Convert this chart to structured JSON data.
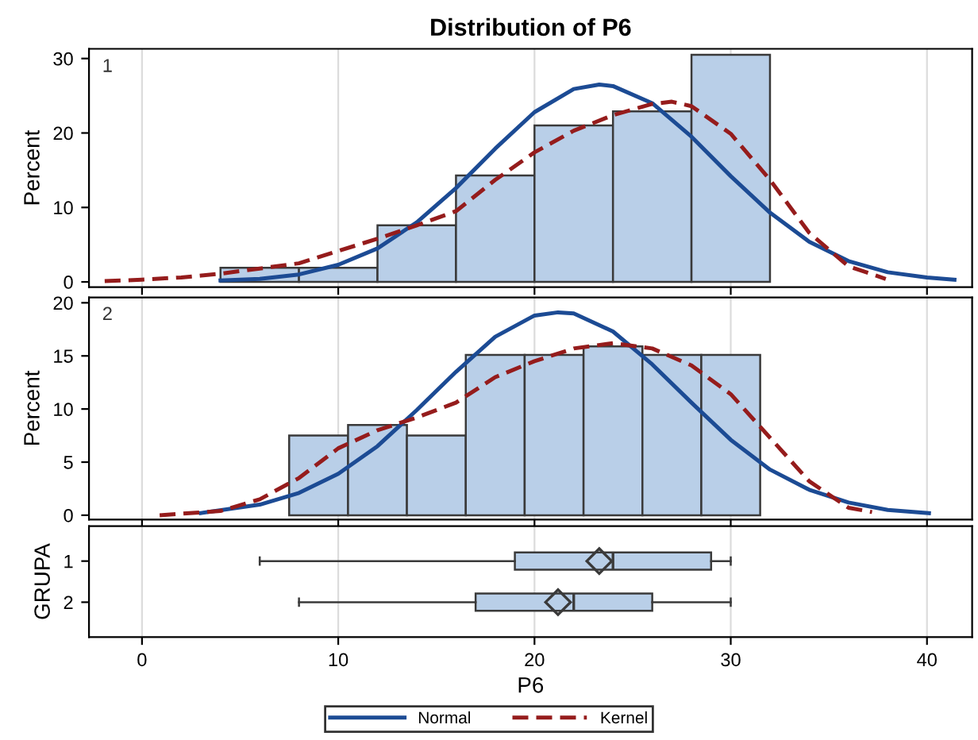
{
  "chart_data": [
    {
      "type": "histogram",
      "title": "Distribution of P6",
      "ylabel": "Percent",
      "annotations": [
        "1"
      ],
      "bins": [
        4,
        8,
        12,
        16,
        20,
        24,
        28,
        32
      ],
      "values": [
        1.9,
        1.9,
        7.6,
        14.3,
        21.0,
        22.9,
        30.5
      ],
      "color": "#b9cfe8",
      "xlim": [
        -2.7,
        42.3
      ],
      "xticks": [
        0,
        10,
        20,
        30,
        40
      ],
      "ylim": [
        -0.7,
        31.3
      ],
      "yticks": [
        0,
        10,
        20,
        30
      ],
      "grid": "x",
      "tick_labels": "y",
      "legend": "bottom",
      "series": [
        {
          "name": "Normal",
          "type": "line",
          "color": "#1c4b94",
          "line_style": "solid",
          "x": [
            4,
            6,
            8,
            10,
            12,
            14,
            16,
            18,
            20,
            22,
            23.3,
            24,
            26,
            28,
            30,
            32,
            34,
            36,
            38,
            40,
            41.4
          ],
          "values": [
            0.2,
            0.4,
            1.0,
            2.3,
            4.5,
            8.0,
            12.6,
            17.9,
            22.8,
            25.9,
            26.5,
            26.3,
            24.0,
            19.5,
            14.2,
            9.3,
            5.4,
            2.8,
            1.3,
            0.6,
            0.3
          ]
        },
        {
          "name": "Kernel",
          "type": "line",
          "color": "#951c1c",
          "line_style": "dashed",
          "x": [
            -1.9,
            0,
            2,
            4,
            8,
            12,
            14,
            16,
            18,
            20,
            22,
            24,
            26,
            27,
            28,
            30,
            32,
            34,
            36,
            37.9
          ],
          "values": [
            0.1,
            0.3,
            0.6,
            1.1,
            2.5,
            5.8,
            7.6,
            9.5,
            13.7,
            17.4,
            20.3,
            22.4,
            23.9,
            24.2,
            23.6,
            19.9,
            13.7,
            6.6,
            2.1,
            0.4
          ]
        }
      ]
    },
    {
      "type": "histogram",
      "ylabel": "Percent",
      "annotations": [
        "2"
      ],
      "bins": [
        7.5,
        10.5,
        13.5,
        16.5,
        19.5,
        22.5,
        25.5,
        28.5,
        31.5
      ],
      "values": [
        7.5,
        8.5,
        7.5,
        15.1,
        15.1,
        15.9,
        15.1,
        15.1
      ],
      "color": "#b9cfe8",
      "xlim": [
        -2.7,
        42.3
      ],
      "xticks": [
        0,
        10,
        20,
        30,
        40
      ],
      "ylim": [
        -0.4,
        20.5
      ],
      "yticks": [
        0,
        5,
        10,
        15,
        20
      ],
      "grid": "x",
      "tick_labels": "y",
      "legend": "bottom",
      "series": [
        {
          "name": "Normal",
          "type": "line",
          "color": "#1c4b94",
          "line_style": "solid",
          "x": [
            3,
            6,
            8,
            10,
            12,
            14,
            16,
            18,
            20,
            21.2,
            22,
            24,
            26,
            28,
            30,
            32,
            34,
            36,
            38,
            40.1
          ],
          "values": [
            0.2,
            1.0,
            2.1,
            3.9,
            6.5,
            9.9,
            13.5,
            16.8,
            18.8,
            19.1,
            19.0,
            17.3,
            14.2,
            10.6,
            7.1,
            4.3,
            2.4,
            1.2,
            0.5,
            0.2
          ]
        },
        {
          "name": "Kernel",
          "type": "line",
          "color": "#951c1c",
          "line_style": "dashed",
          "x": [
            0.9,
            4,
            6,
            8,
            10,
            12,
            14,
            16,
            18,
            20,
            22,
            24,
            26,
            28,
            30,
            32,
            34,
            36,
            37.2
          ],
          "values": [
            0.0,
            0.4,
            1.5,
            3.5,
            6.3,
            8.0,
            9.2,
            10.6,
            13.0,
            14.5,
            15.7,
            16.2,
            15.7,
            14.1,
            11.4,
            7.3,
            3.2,
            0.7,
            0.3
          ]
        }
      ]
    },
    {
      "type": "box",
      "orientation": "horizontal",
      "xlabel": "P6",
      "ylabel": "GRUPA",
      "categories": [
        "1",
        "2"
      ],
      "color": "#b9cfe8",
      "xlim": [
        -2.7,
        42.3
      ],
      "xticks": [
        0,
        10,
        20,
        30,
        40
      ],
      "grid": "x",
      "marker": "diamond",
      "boxes": [
        {
          "low": 6,
          "q1": 19,
          "median": 24,
          "q3": 29,
          "high": 30,
          "mean": 23.3
        },
        {
          "low": 8,
          "q1": 17,
          "median": 22,
          "q3": 26,
          "high": 30,
          "mean": 21.2
        }
      ]
    }
  ]
}
